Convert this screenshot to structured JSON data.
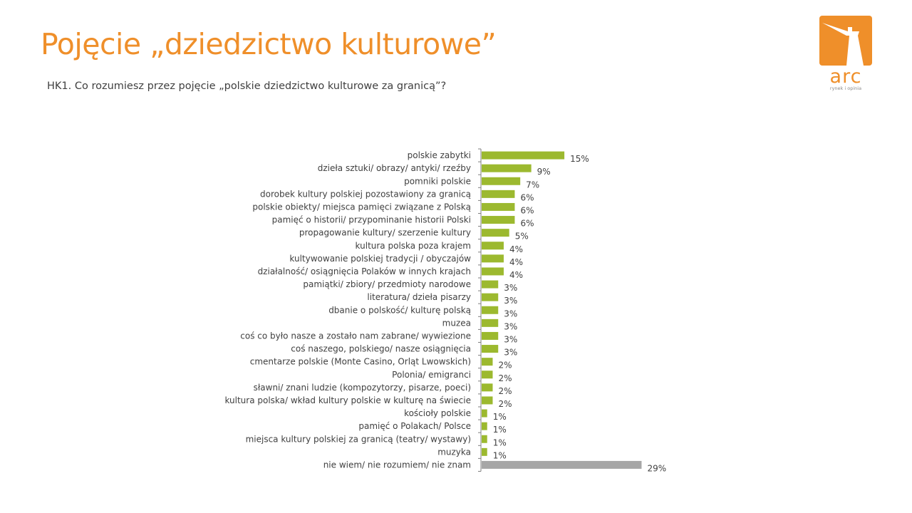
{
  "header": {
    "title": "Pojęcie „dziedzictwo kulturowe”",
    "question": "HK1. Co rozumiesz przez pojęcie „polskie dziedzictwo kulturowe za granicą”?"
  },
  "logo": {
    "brand": "arc",
    "tagline": "rynek i opinia",
    "color": "#ef8f2a"
  },
  "chart_data": {
    "type": "bar",
    "orientation": "horizontal",
    "unit": "%",
    "xlim": [
      0,
      30
    ],
    "grid": false,
    "colors": {
      "default": "#9cb92f",
      "highlight": "#a6a6a6"
    },
    "categories": [
      "polskie zabytki",
      "dzieła sztuki/ obrazy/ antyki/ rzeźby",
      "pomniki polskie",
      "dorobek kultury polskiej pozostawiony za granicą",
      "polskie obiekty/ miejsca pamięci związane z Polską",
      "pamięć o historii/ przypominanie historii Polski",
      "propagowanie kultury/ szerzenie kultury",
      "kultura polska poza krajem",
      "kultywowanie polskiej tradycji / obyczajów",
      "działalność/ osiągnięcia Polaków w innych krajach",
      "pamiątki/ zbiory/ przedmioty narodowe",
      "literatura/ dzieła pisarzy",
      "dbanie o polskość/ kulturę polską",
      "muzea",
      "coś co było nasze a zostało nam zabrane/ wywiezione",
      "coś naszego, polskiego/ nasze osiągnięcia",
      "cmentarze polskie (Monte Casino, Orląt Lwowskich)",
      "Polonia/ emigranci",
      "sławni/ znani ludzie (kompozytorzy, pisarze, poeci)",
      "kultura polska/ wkład kultury polskie w kulturę na świecie",
      "kościoły polskie",
      "pamięć o Polakach/ Polsce",
      "miejsca kultury polskiej za granicą (teatry/ wystawy)",
      "muzyka",
      "nie wiem/ nie rozumiem/ nie znam"
    ],
    "values": [
      15,
      9,
      7,
      6,
      6,
      6,
      5,
      4,
      4,
      4,
      3,
      3,
      3,
      3,
      3,
      3,
      2,
      2,
      2,
      2,
      1,
      1,
      1,
      1,
      29
    ],
    "value_labels": [
      "15%",
      "9%",
      "7%",
      "6%",
      "6%",
      "6%",
      "5%",
      "4%",
      "4%",
      "4%",
      "3%",
      "3%",
      "3%",
      "3%",
      "3%",
      "3%",
      "2%",
      "2%",
      "2%",
      "2%",
      "1%",
      "1%",
      "1%",
      "1%",
      "29%"
    ],
    "highlight_index": 24
  }
}
